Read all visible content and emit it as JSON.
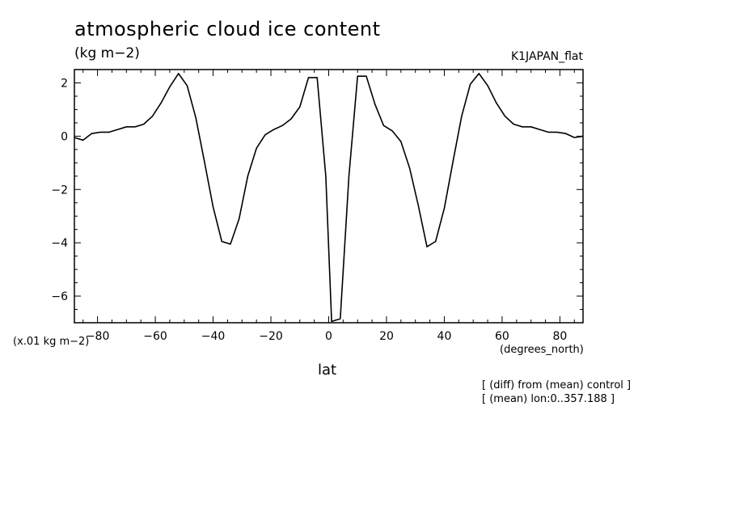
{
  "chart_data": {
    "type": "line",
    "title": "atmospheric cloud ice content",
    "units": "(kg m−2)",
    "experiment": "K1JAPAN_flat",
    "scale_note": "(x.01 kg m−2)",
    "xlabel": "lat",
    "xunits": "(degrees_north)",
    "notes": [
      "[ (diff) from (mean) control ]",
      "[ (mean) lon:0..357.188 ]"
    ],
    "xlim": [
      -88,
      88
    ],
    "ylim": [
      -7,
      2.5
    ],
    "xticks": [
      -80,
      -60,
      -40,
      -20,
      0,
      20,
      40,
      60,
      80
    ],
    "xtick_labels": [
      "−80",
      "−60",
      "−40",
      "−20",
      "0",
      "20",
      "40",
      "60",
      "80"
    ],
    "yticks": [
      2,
      0,
      -2,
      -4,
      -6
    ],
    "ytick_labels": [
      "2",
      "0",
      "−2",
      "−4",
      "−6"
    ],
    "grid": false,
    "series": [
      {
        "x": [
          -88,
          -85,
          -82,
          -79,
          -76,
          -73,
          -70,
          -67,
          -64,
          -61,
          -58,
          -55,
          -52,
          -49,
          -46,
          -43,
          -40,
          -37,
          -34,
          -31,
          -28,
          -25,
          -22,
          -19,
          -16,
          -13,
          -10,
          -7,
          -4,
          -1,
          1,
          4,
          7,
          10,
          13,
          16,
          19,
          22,
          25,
          28,
          31,
          34,
          37,
          40,
          43,
          46,
          49,
          52,
          55,
          58,
          61,
          64,
          67,
          70,
          73,
          76,
          79,
          82,
          85,
          88
        ],
        "y": [
          -0.05,
          -0.15,
          0.1,
          0.15,
          0.15,
          0.25,
          0.35,
          0.35,
          0.45,
          0.75,
          1.25,
          1.85,
          2.35,
          1.9,
          0.7,
          -0.95,
          -2.65,
          -3.95,
          -4.05,
          -3.1,
          -1.5,
          -0.45,
          0.05,
          0.25,
          0.4,
          0.65,
          1.1,
          2.2,
          2.2,
          -1.5,
          -6.95,
          -6.85,
          -1.5,
          2.25,
          2.25,
          1.2,
          0.4,
          0.2,
          -0.2,
          -1.2,
          -2.6,
          -4.15,
          -3.95,
          -2.7,
          -0.95,
          0.75,
          1.95,
          2.35,
          1.9,
          1.25,
          0.75,
          0.45,
          0.35,
          0.35,
          0.25,
          0.15,
          0.15,
          0.1,
          -0.05,
          0.0
        ]
      }
    ]
  }
}
